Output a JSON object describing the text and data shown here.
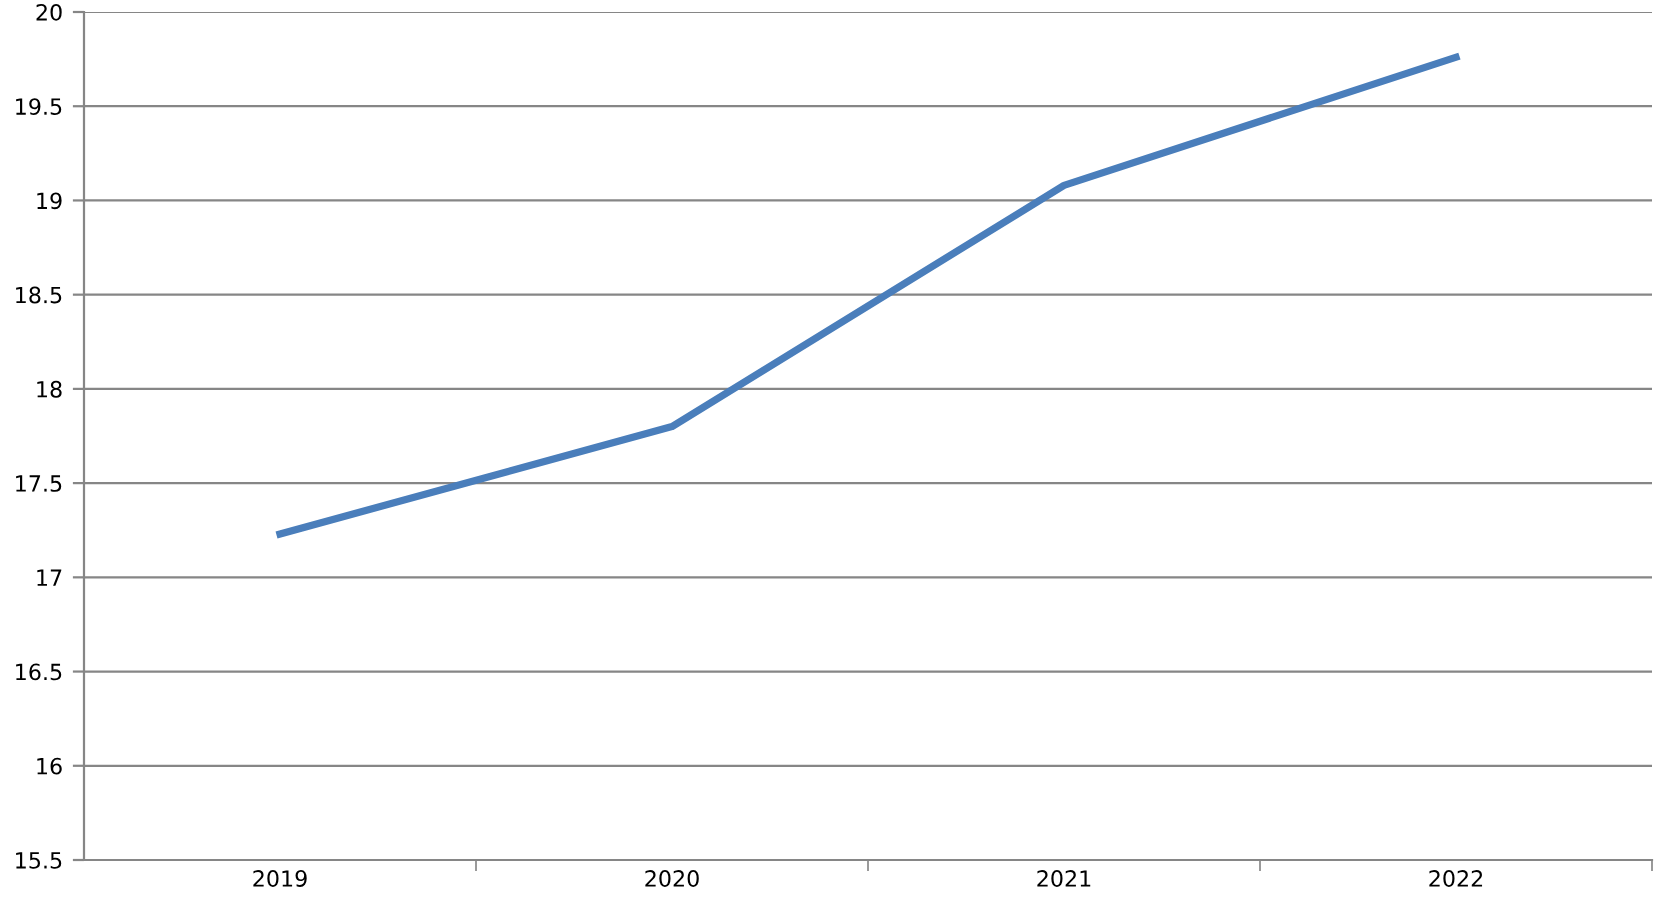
{
  "chart_data": {
    "type": "line",
    "categories": [
      "2019",
      "2020",
      "2021",
      "2022"
    ],
    "series": [
      {
        "color": "#4a7ebb",
        "values": [
          17.23,
          17.8,
          19.08,
          19.76
        ]
      }
    ],
    "ylim": [
      15.5,
      20
    ],
    "yticks": [
      15.5,
      16,
      16.5,
      17,
      17.5,
      18,
      18.5,
      19,
      19.5,
      20
    ],
    "grid": "y",
    "marker": "none",
    "line_style": "solid"
  }
}
